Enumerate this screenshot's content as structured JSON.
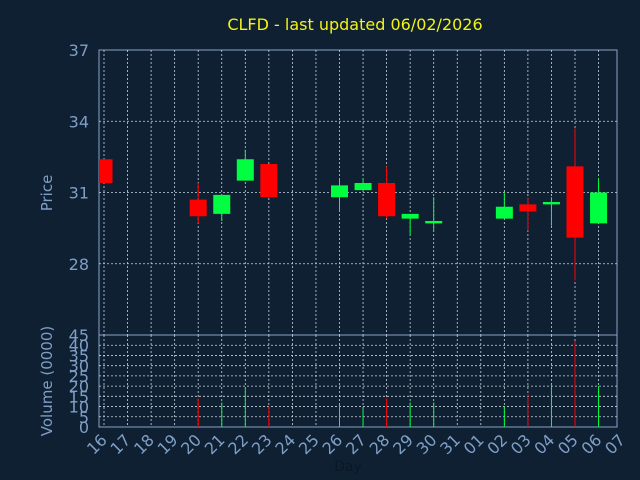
{
  "chart_data": {
    "type": "candlestick",
    "title": "CLFD - last updated 06/02/2026",
    "price_panel": {
      "ylabel": "Price",
      "ylim": [
        25,
        37
      ],
      "yticks": [
        "28",
        "31",
        "34",
        "37"
      ]
    },
    "volume_panel": {
      "ylabel": "Volume (0000)",
      "ylim": [
        0,
        45
      ],
      "yticks": [
        "0",
        "5",
        "10",
        "15",
        "20",
        "25",
        "30",
        "35",
        "40",
        "45"
      ]
    },
    "xlabel": "Day",
    "xticks": [
      "16",
      "17",
      "18",
      "19",
      "20",
      "21",
      "22",
      "23",
      "24",
      "25",
      "26",
      "27",
      "28",
      "29",
      "30",
      "31",
      "01",
      "02",
      "03",
      "04",
      "05",
      "06",
      "07"
    ],
    "grid": true,
    "colors": {
      "up": "#00ff40",
      "down": "#ff0000",
      "title": "#f2f216",
      "axis_text": "#7f9fc6",
      "background": "#0f2033"
    },
    "candles": [
      {
        "day": "16",
        "open": 32.4,
        "close": 31.4,
        "high": 32.4,
        "low": 31.4,
        "volume": 0
      },
      {
        "day": "20",
        "open": 30.7,
        "close": 30.0,
        "high": 31.4,
        "low": 29.7,
        "volume": 14
      },
      {
        "day": "21",
        "open": 30.1,
        "close": 30.9,
        "high": 30.9,
        "low": 29.8,
        "volume": 12
      },
      {
        "day": "22",
        "open": 31.5,
        "close": 32.4,
        "high": 32.8,
        "low": 31.5,
        "volume": 19
      },
      {
        "day": "23",
        "open": 32.2,
        "close": 30.8,
        "high": 32.2,
        "low": 30.8,
        "volume": 10
      },
      {
        "day": "26",
        "open": 30.8,
        "close": 31.3,
        "high": 31.6,
        "low": 30.2,
        "volume": 11
      },
      {
        "day": "27",
        "open": 31.1,
        "close": 31.4,
        "high": 31.6,
        "low": 31.1,
        "volume": 9
      },
      {
        "day": "28",
        "open": 31.4,
        "close": 30.0,
        "high": 32.1,
        "low": 29.9,
        "volume": 14
      },
      {
        "day": "29",
        "open": 29.9,
        "close": 30.1,
        "high": 30.1,
        "low": 29.2,
        "volume": 12
      },
      {
        "day": "30",
        "open": 29.7,
        "close": 29.8,
        "high": 30.8,
        "low": 29.4,
        "volume": 12
      },
      {
        "day": "02",
        "open": 29.9,
        "close": 30.4,
        "high": 31.0,
        "low": 29.9,
        "volume": 10
      },
      {
        "day": "03",
        "open": 30.5,
        "close": 30.2,
        "high": 30.8,
        "low": 29.4,
        "volume": 16
      },
      {
        "day": "04",
        "open": 30.5,
        "close": 30.6,
        "high": 30.8,
        "low": 29.6,
        "volume": 21
      },
      {
        "day": "05",
        "open": 32.1,
        "close": 29.1,
        "high": 33.7,
        "low": 27.3,
        "volume": 42
      },
      {
        "day": "06",
        "open": 29.7,
        "close": 31.0,
        "high": 31.6,
        "low": 29.7,
        "volume": 20
      }
    ]
  }
}
